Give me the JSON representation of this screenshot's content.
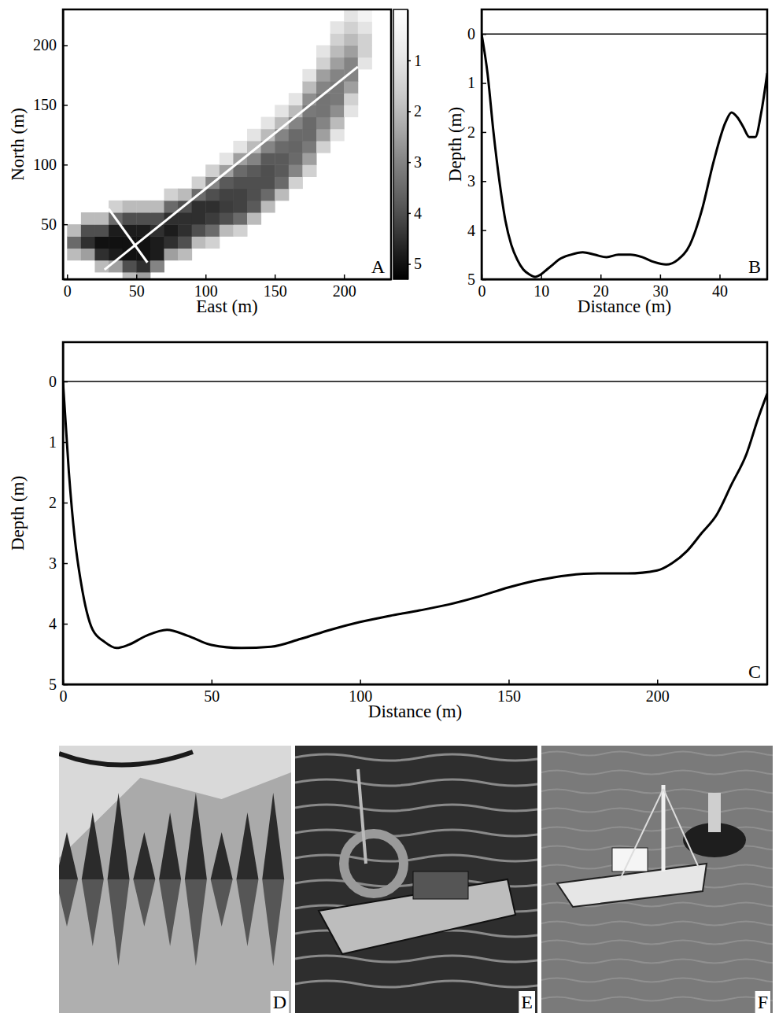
{
  "chart_data": [
    {
      "panel": "A",
      "type": "heatmap",
      "x_label": "East (m)",
      "y_label": "North (m)",
      "x": [
        5,
        15,
        25,
        35,
        45,
        55,
        65,
        75,
        85,
        95,
        105,
        115,
        125,
        135,
        145,
        155,
        165,
        175,
        185,
        195,
        205,
        215,
        225
      ],
      "y": [
        5,
        15,
        25,
        35,
        45,
        55,
        65,
        75,
        85,
        95,
        105,
        115,
        125,
        135,
        145,
        155,
        165,
        175,
        185,
        195,
        205,
        215,
        225
      ],
      "z": [
        [
          null,
          null,
          null,
          null,
          2.0,
          2.5,
          null,
          null,
          null,
          null,
          null,
          null,
          null,
          null,
          null,
          null,
          null,
          null,
          null,
          null,
          null,
          null,
          null
        ],
        [
          null,
          null,
          2.0,
          2.5,
          4.0,
          4.5,
          3.0,
          null,
          null,
          null,
          null,
          null,
          null,
          null,
          null,
          null,
          null,
          null,
          null,
          null,
          null,
          null,
          null
        ],
        [
          2.0,
          2.5,
          4.5,
          4.8,
          5.0,
          5.0,
          4.8,
          2.5,
          2.0,
          null,
          null,
          null,
          null,
          null,
          null,
          null,
          null,
          null,
          null,
          null,
          null,
          null,
          null
        ],
        [
          3.5,
          4.5,
          5.0,
          5.0,
          5.0,
          5.0,
          4.8,
          4.5,
          4.0,
          2.0,
          1.5,
          null,
          null,
          null,
          null,
          null,
          null,
          null,
          null,
          null,
          null,
          null,
          null
        ],
        [
          2.0,
          4.0,
          4.0,
          4.8,
          4.8,
          4.8,
          4.5,
          4.8,
          4.5,
          4.0,
          3.5,
          2.0,
          1.5,
          null,
          null,
          null,
          null,
          null,
          null,
          null,
          null,
          null,
          null
        ],
        [
          null,
          2.0,
          2.0,
          3.5,
          4.0,
          4.0,
          4.0,
          4.5,
          4.5,
          4.5,
          4.3,
          4.0,
          3.5,
          2.0,
          null,
          null,
          null,
          null,
          null,
          null,
          null,
          null,
          null
        ],
        [
          null,
          null,
          null,
          1.5,
          2.0,
          2.0,
          2.0,
          3.5,
          4.0,
          4.5,
          4.5,
          4.3,
          4.2,
          3.8,
          2.0,
          null,
          null,
          null,
          null,
          null,
          null,
          null,
          null
        ],
        [
          null,
          null,
          null,
          null,
          null,
          null,
          null,
          1.5,
          2.0,
          3.5,
          4.0,
          4.2,
          4.2,
          4.0,
          3.5,
          2.0,
          null,
          null,
          null,
          null,
          null,
          null,
          null
        ],
        [
          null,
          null,
          null,
          null,
          null,
          null,
          null,
          null,
          null,
          1.5,
          3.0,
          3.8,
          4.0,
          4.0,
          4.0,
          3.5,
          1.5,
          null,
          null,
          null,
          null,
          null,
          null
        ],
        [
          null,
          null,
          null,
          null,
          null,
          null,
          null,
          null,
          null,
          null,
          1.5,
          2.5,
          3.5,
          3.8,
          4.0,
          3.8,
          3.0,
          1.5,
          null,
          null,
          null,
          null,
          null
        ],
        [
          null,
          null,
          null,
          null,
          null,
          null,
          null,
          null,
          null,
          null,
          null,
          1.0,
          2.5,
          3.0,
          3.8,
          3.8,
          3.5,
          2.5,
          null,
          null,
          null,
          null,
          null
        ],
        [
          null,
          null,
          null,
          null,
          null,
          null,
          null,
          null,
          null,
          null,
          null,
          null,
          1.0,
          2.0,
          3.0,
          3.5,
          3.6,
          3.2,
          1.5,
          null,
          null,
          null,
          null
        ],
        [
          null,
          null,
          null,
          null,
          null,
          null,
          null,
          null,
          null,
          null,
          null,
          null,
          null,
          1.0,
          2.0,
          3.0,
          3.5,
          3.5,
          2.5,
          1.0,
          null,
          null,
          null
        ],
        [
          null,
          null,
          null,
          null,
          null,
          null,
          null,
          null,
          null,
          null,
          null,
          null,
          null,
          null,
          1.0,
          2.0,
          3.0,
          3.5,
          3.0,
          2.0,
          null,
          null,
          null
        ],
        [
          null,
          null,
          null,
          null,
          null,
          null,
          null,
          null,
          null,
          null,
          null,
          null,
          null,
          null,
          null,
          1.0,
          2.0,
          3.2,
          3.3,
          2.8,
          1.0,
          null,
          null
        ],
        [
          null,
          null,
          null,
          null,
          null,
          null,
          null,
          null,
          null,
          null,
          null,
          null,
          null,
          null,
          null,
          null,
          1.0,
          2.8,
          3.3,
          3.2,
          1.5,
          null,
          null
        ],
        [
          null,
          null,
          null,
          null,
          null,
          null,
          null,
          null,
          null,
          null,
          null,
          null,
          null,
          null,
          null,
          null,
          null,
          2.0,
          3.0,
          3.2,
          2.5,
          null,
          null
        ],
        [
          null,
          null,
          null,
          null,
          null,
          null,
          null,
          null,
          null,
          null,
          null,
          null,
          null,
          null,
          null,
          null,
          null,
          1.0,
          2.5,
          3.0,
          3.0,
          null,
          null
        ],
        [
          null,
          null,
          null,
          null,
          null,
          null,
          null,
          null,
          null,
          null,
          null,
          null,
          null,
          null,
          null,
          null,
          null,
          null,
          1.5,
          2.5,
          3.0,
          1.0,
          null
        ],
        [
          null,
          null,
          null,
          null,
          null,
          null,
          null,
          null,
          null,
          null,
          null,
          null,
          null,
          null,
          null,
          null,
          null,
          null,
          1.0,
          2.0,
          2.5,
          1.5,
          null
        ],
        [
          null,
          null,
          null,
          null,
          null,
          null,
          null,
          null,
          null,
          null,
          null,
          null,
          null,
          null,
          null,
          null,
          null,
          null,
          null,
          1.5,
          2.0,
          1.5,
          null
        ],
        [
          null,
          null,
          null,
          null,
          null,
          null,
          null,
          null,
          null,
          null,
          null,
          null,
          null,
          null,
          null,
          null,
          null,
          null,
          null,
          1.0,
          1.5,
          1.0,
          null
        ],
        [
          null,
          null,
          null,
          null,
          null,
          null,
          null,
          null,
          null,
          null,
          null,
          null,
          null,
          null,
          null,
          null,
          null,
          null,
          null,
          null,
          1.0,
          0.5,
          null
        ]
      ],
      "xlim": [
        -3,
        234
      ],
      "ylim": [
        4,
        230
      ],
      "xticks": [
        0,
        50,
        100,
        150,
        200
      ],
      "yticks": [
        50,
        100,
        150,
        200
      ],
      "colorbar": {
        "range": [
          0,
          5.3
        ],
        "ticks": [
          1,
          2,
          3,
          4,
          5
        ]
      },
      "transects": [
        {
          "x": [
            27,
            210
          ],
          "y": [
            12,
            182
          ]
        },
        {
          "x": [
            30,
            58
          ],
          "y": [
            63,
            18
          ]
        }
      ]
    },
    {
      "panel": "B",
      "type": "line",
      "x_label": "Distance (m)",
      "y_label": "Depth (m)",
      "x": [
        0,
        1,
        2,
        3,
        4,
        5,
        6,
        7,
        8,
        9,
        10,
        11,
        12,
        13,
        15,
        17,
        19,
        21,
        23,
        25,
        27,
        29,
        31,
        33,
        35,
        37,
        39,
        41,
        42,
        43,
        44,
        45,
        46,
        47,
        48
      ],
      "values": [
        0,
        0.8,
        2.0,
        3.0,
        3.8,
        4.3,
        4.6,
        4.8,
        4.9,
        4.95,
        4.9,
        4.8,
        4.7,
        4.6,
        4.5,
        4.45,
        4.5,
        4.55,
        4.5,
        4.5,
        4.55,
        4.65,
        4.7,
        4.6,
        4.3,
        3.6,
        2.6,
        1.8,
        1.6,
        1.7,
        1.9,
        2.1,
        2.1,
        1.6,
        0.8
      ],
      "surface": 0,
      "color": "#000000",
      "xlim": [
        0,
        48
      ],
      "ylim": [
        5,
        -0.5
      ],
      "xticks": [
        0,
        10,
        20,
        30,
        40
      ],
      "yticks": [
        0,
        1,
        2,
        3,
        4,
        5
      ]
    },
    {
      "panel": "C",
      "type": "line",
      "x_label": "Distance (m)",
      "y_label": "Depth (m)",
      "x": [
        0,
        2,
        4,
        6,
        8,
        10,
        14,
        18,
        22,
        28,
        35,
        42,
        50,
        60,
        70,
        80,
        90,
        100,
        110,
        120,
        130,
        140,
        150,
        160,
        170,
        180,
        190,
        200,
        205,
        210,
        215,
        220,
        225,
        230,
        234,
        237
      ],
      "values": [
        0,
        1.5,
        2.6,
        3.3,
        3.8,
        4.1,
        4.3,
        4.4,
        4.35,
        4.2,
        4.1,
        4.2,
        4.35,
        4.4,
        4.38,
        4.25,
        4.1,
        3.97,
        3.87,
        3.78,
        3.68,
        3.55,
        3.4,
        3.28,
        3.2,
        3.17,
        3.17,
        3.12,
        3.0,
        2.8,
        2.5,
        2.2,
        1.7,
        1.2,
        0.6,
        0.2
      ],
      "surface": 0,
      "color": "#000000",
      "xlim": [
        0,
        237
      ],
      "ylim": [
        5,
        -0.65
      ],
      "xticks": [
        0,
        50,
        100,
        150,
        200
      ],
      "yticks": [
        0,
        1,
        2,
        3,
        4,
        5
      ]
    }
  ],
  "photos": [
    {
      "label": "D"
    },
    {
      "label": "E"
    },
    {
      "label": "F"
    }
  ]
}
